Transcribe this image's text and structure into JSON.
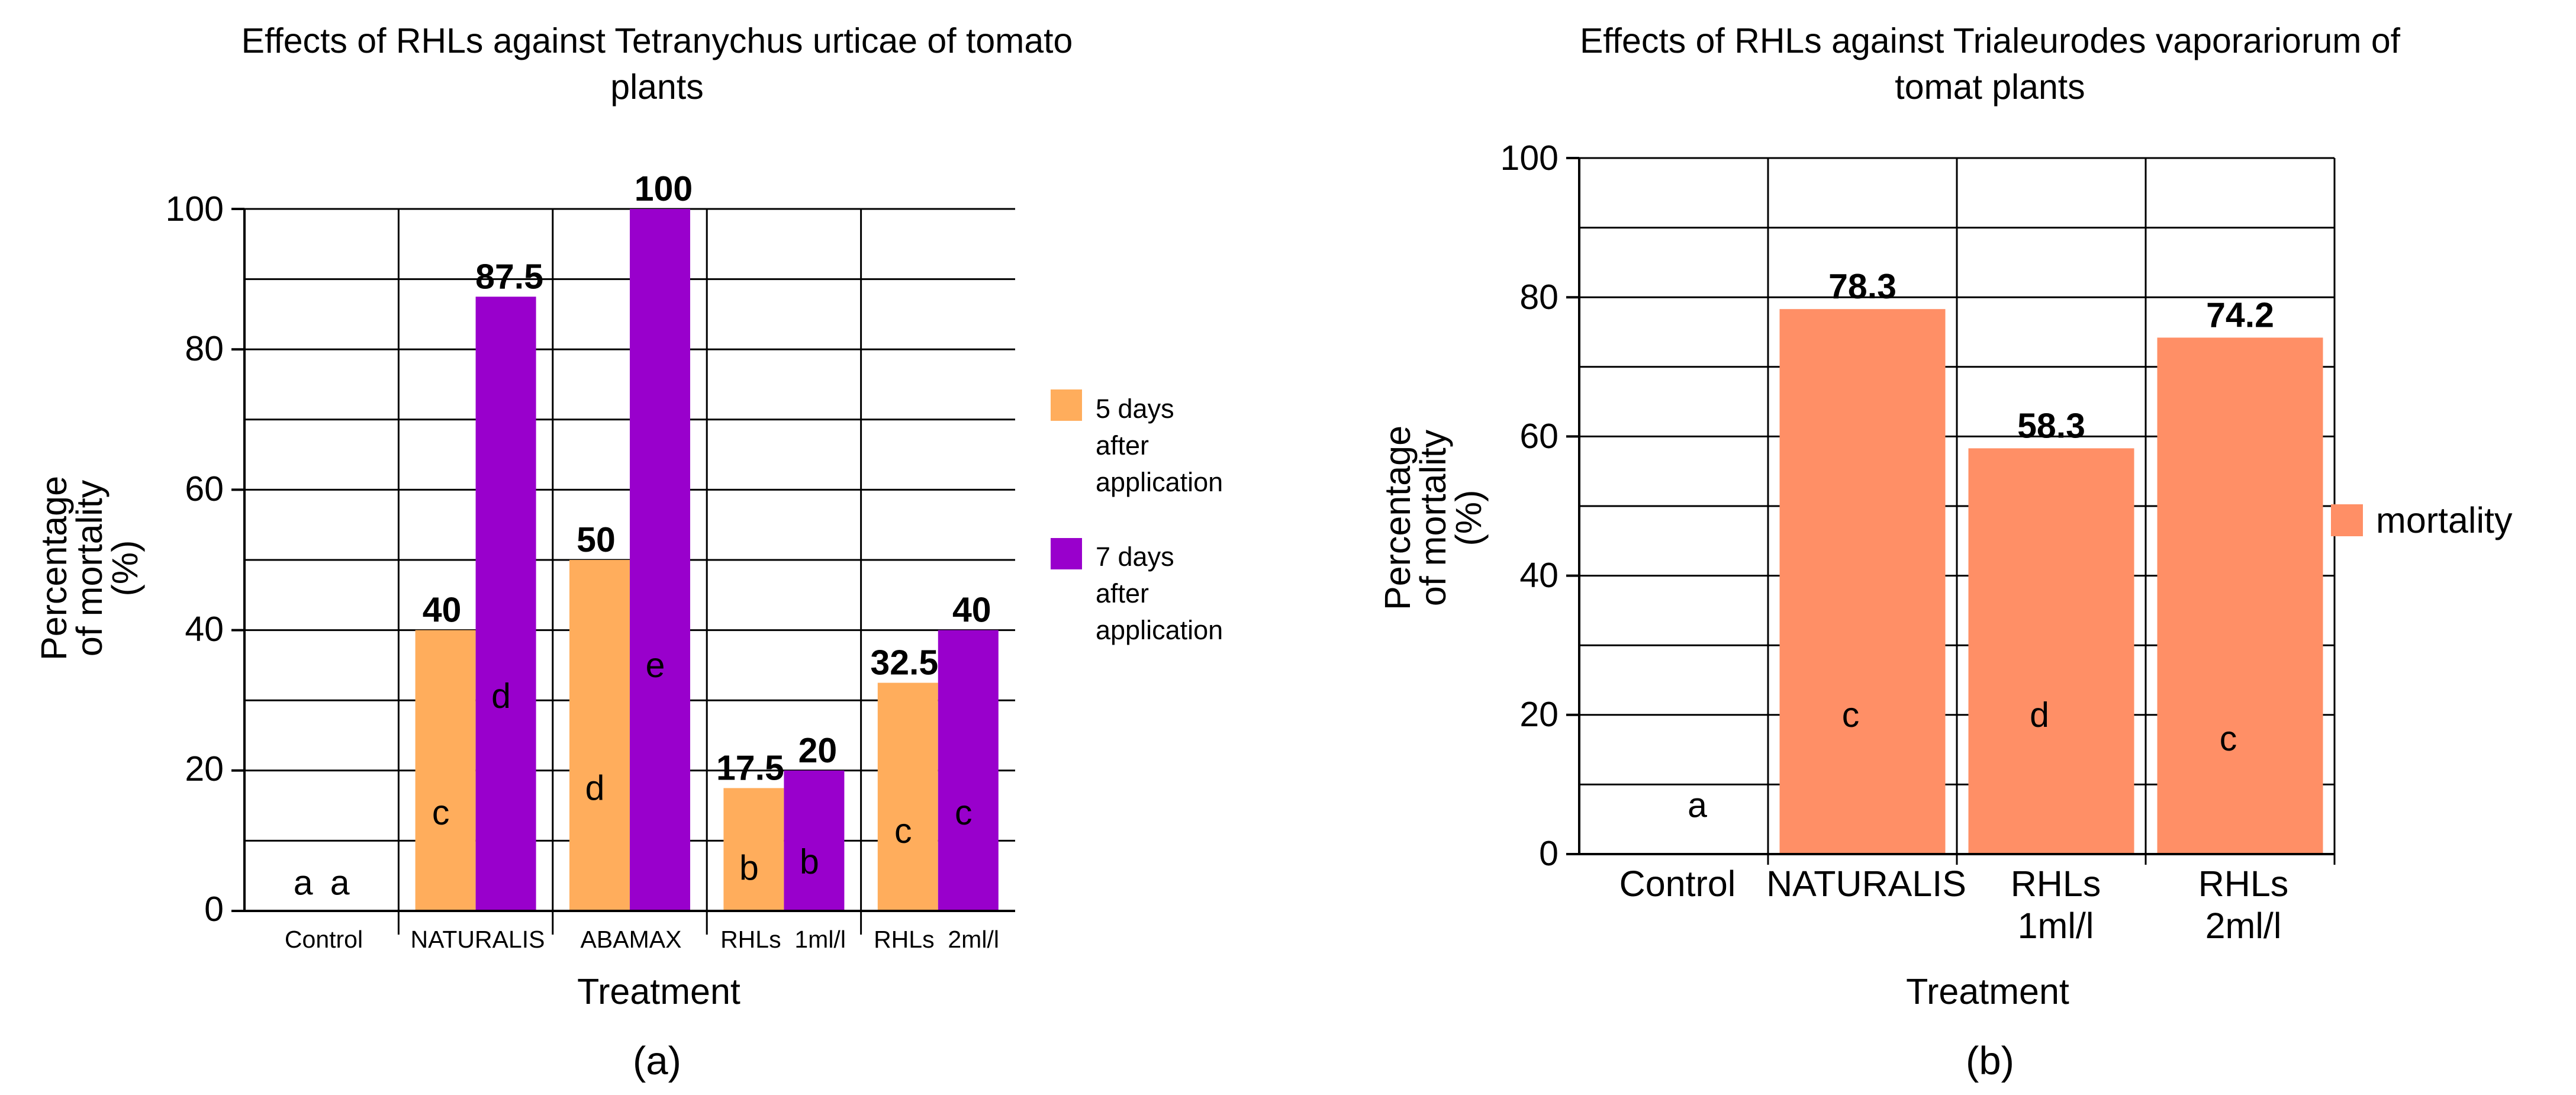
{
  "chart_data": [
    {
      "type": "bar",
      "panel_label": "(a)",
      "title_lines": [
        "Effects of RHLs against Tetranychus urticae of tomato",
        "plants"
      ],
      "xlabel": "Treatment",
      "ylabel_lines": [
        "Percentage",
        "of mortality",
        "(%)"
      ],
      "ylim": [
        0,
        100
      ],
      "yticks": [
        "0",
        "20",
        "40",
        "60",
        "80",
        "100"
      ],
      "categories": [
        "Control",
        "NATURALIS",
        "ABAMAX",
        "RHLs  1ml/l",
        "RHLs  2ml/l"
      ],
      "series": [
        {
          "name_lines": [
            "5 days",
            "after",
            "application"
          ],
          "color": "#FFAD5C",
          "values": [
            0,
            40,
            50,
            17.5,
            32.5
          ],
          "value_labels": [
            "",
            "40",
            "50",
            "17.5",
            "32.5"
          ],
          "letters": [
            "a",
            "c",
            "d",
            "b",
            "c"
          ],
          "letter_color": "#000000"
        },
        {
          "name_lines": [
            "7 days",
            "after",
            "application"
          ],
          "color": "#9900CC",
          "values": [
            0,
            87.5,
            100,
            20,
            40
          ],
          "value_labels": [
            "",
            "87.5",
            "100",
            "20",
            "40"
          ],
          "letters": [
            "a",
            "d",
            "e",
            "b",
            "c"
          ],
          "letter_color": "#FFFFFF"
        }
      ],
      "legend_position": "right"
    },
    {
      "type": "bar",
      "panel_label": "(b)",
      "title_lines": [
        "Effects of RHLs against Trialeurodes vaporariorum of",
        "tomat plants"
      ],
      "xlabel": "Treatment",
      "ylabel_lines": [
        "Percentage",
        "of mortality",
        "(%)"
      ],
      "ylim": [
        0,
        100
      ],
      "yticks": [
        "0",
        "20",
        "40",
        "60",
        "80",
        "100"
      ],
      "category_lines": [
        [
          "Control"
        ],
        [
          "NATURALIS"
        ],
        [
          "RHLs",
          "1ml/l"
        ],
        [
          "RHLs",
          "2ml/l"
        ]
      ],
      "series": [
        {
          "name": "mortality",
          "color": "#FF8F66",
          "values": [
            0,
            78.3,
            58.3,
            74.2
          ],
          "value_labels": [
            "",
            "78.3",
            "58.3",
            "74.2"
          ],
          "letters": [
            "a",
            "c",
            "d",
            "c"
          ],
          "letter_color": "#000000"
        }
      ],
      "legend_position": "right"
    }
  ]
}
